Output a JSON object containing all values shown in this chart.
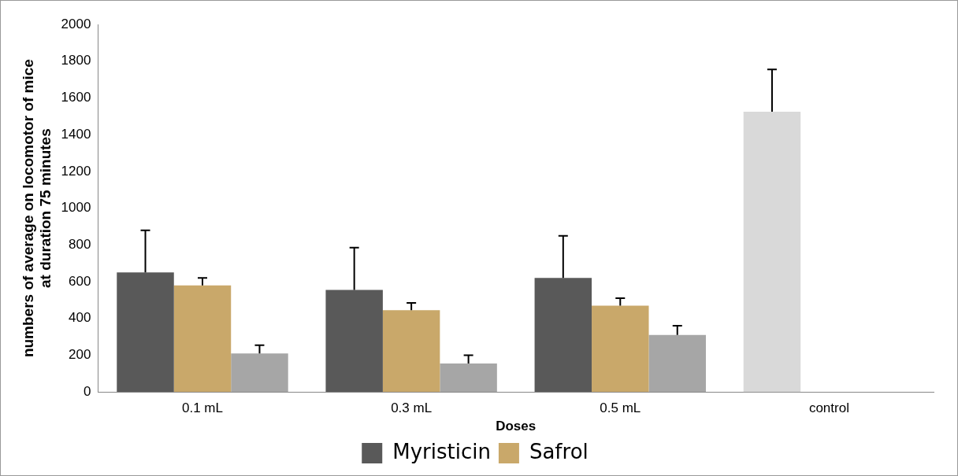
{
  "chart_data": {
    "type": "bar",
    "xlabel": "Doses",
    "ylabel": "numbers of average on locomotor of mice at duration 75 minutes",
    "categories": [
      "0.1 mL",
      "0.3 mL",
      "0.5 mL",
      "control"
    ],
    "series": [
      {
        "name": "Myristicin",
        "color": "#595959",
        "colors": [
          "#595959",
          "#595959",
          "#595959",
          "#d9d9d9"
        ],
        "values": [
          650,
          555,
          620,
          1525
        ],
        "errors": [
          230,
          230,
          230,
          230
        ]
      },
      {
        "name": "Safrol",
        "color": "#c9a86a",
        "values": [
          580,
          445,
          470,
          null
        ],
        "errors": [
          40,
          40,
          40,
          null
        ]
      },
      {
        "color": "#a6a6a6",
        "values": [
          210,
          155,
          310,
          null
        ],
        "errors": [
          45,
          45,
          50,
          null
        ]
      }
    ],
    "ylim": [
      0,
      2000
    ],
    "yticks": [
      0,
      200,
      400,
      600,
      800,
      1000,
      1200,
      1400,
      1600,
      1800,
      2000
    ],
    "grid": false,
    "legend": "bottom"
  }
}
